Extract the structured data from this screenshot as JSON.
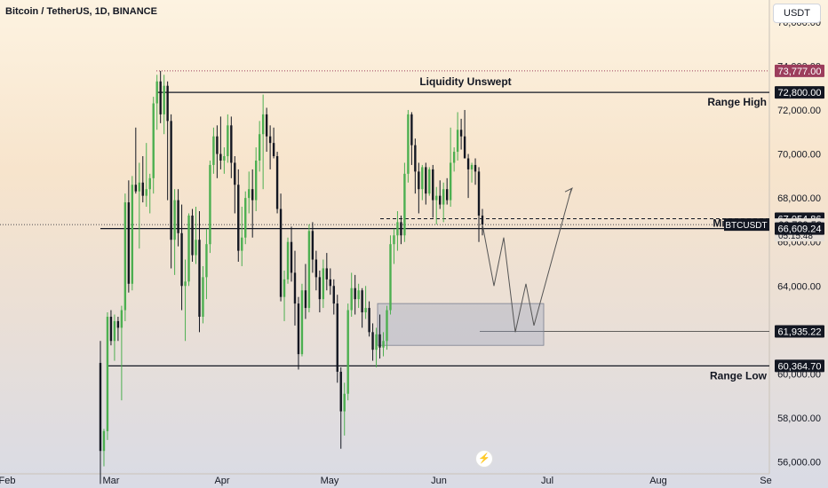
{
  "header": {
    "title": "Bitcoin / TetherUS, 1D, BINANCE",
    "currency": "USDT"
  },
  "logo_icon": "tradingview-logo-icon",
  "chart_data": {
    "type": "candlestick",
    "symbol": "BTCUSDT",
    "y_axis": {
      "range": [
        55500,
        77000
      ],
      "ticks": [
        56000,
        58000,
        60000,
        62000,
        64000,
        66000,
        68000,
        70000,
        72000,
        74000,
        76000
      ],
      "tick_labels": [
        "56,000.00",
        "58,000.00",
        "60,000.00",
        "62,000.00",
        "64,000.00",
        "66,000.00",
        "68,000.00",
        "70,000.00",
        "72,000.00",
        "74,000.00",
        "76,000.00"
      ]
    },
    "x_axis": {
      "labels": [
        "Feb",
        "Mar",
        "Apr",
        "May",
        "Jun",
        "Jul",
        "Aug",
        "Se"
      ]
    },
    "colors": {
      "up": "#4caf50",
      "down": "#131722",
      "resistance": "#131722",
      "price_label": "#131722",
      "ath_label": "#9c3d5c"
    },
    "price_labels": [
      {
        "text": "73,777.00",
        "value": 73777,
        "style": "ath"
      },
      {
        "text": "72,800.00",
        "value": 72800,
        "style": "dark"
      },
      {
        "text": "67,054.86",
        "value": 67054.86,
        "style": "dark"
      },
      {
        "text": "66,789.52",
        "value": 66789.52,
        "style": "dark",
        "prefix": "BTCUSDT",
        "countdown": "05:15:48"
      },
      {
        "text": "66,609.24",
        "value": 66609.24,
        "style": "dark"
      },
      {
        "text": "61,935.22",
        "value": 61935.22,
        "style": "dark"
      },
      {
        "text": "60,364.70",
        "value": 60364.7,
        "style": "dark"
      }
    ],
    "annotations": [
      {
        "text": "Liquidity Unswept",
        "value": 72800
      },
      {
        "text": "Range High",
        "value": 72800
      },
      {
        "text": "Mid Range",
        "value": 66609.24
      },
      {
        "text": "Range Low",
        "value": 60364.7
      }
    ],
    "levels": {
      "range_high": 72800,
      "mid_range": 66609.24,
      "range_low": 60364.7,
      "ath": 73777,
      "last_price": 66789.52,
      "dashed_level": 67054.86,
      "target": 61935.22
    },
    "demand_zone": {
      "top": 63200,
      "bottom": 61300
    },
    "projection": [
      66800,
      64000,
      66200,
      61900,
      64100,
      62200,
      68400
    ],
    "candles": [
      [
        60500,
        61500,
        55000,
        56500
      ],
      [
        56500,
        57500,
        55800,
        57400
      ],
      [
        57400,
        62800,
        57000,
        62600
      ],
      [
        62600,
        62900,
        61300,
        61500
      ],
      [
        61500,
        62700,
        60600,
        62400
      ],
      [
        62400,
        62600,
        61500,
        62100
      ],
      [
        62100,
        63100,
        58800,
        62900
      ],
      [
        62900,
        68200,
        62400,
        67800
      ],
      [
        67800,
        68800,
        63700,
        64100
      ],
      [
        64100,
        69000,
        63800,
        68600
      ],
      [
        68600,
        71200,
        68200,
        68300
      ],
      [
        68300,
        69600,
        65700,
        68700
      ],
      [
        68700,
        69900,
        67800,
        68100
      ],
      [
        68100,
        70500,
        67600,
        68400
      ],
      [
        68400,
        69100,
        67300,
        68900
      ],
      [
        68900,
        72600,
        68200,
        72300
      ],
      [
        72300,
        73600,
        71100,
        73300
      ],
      [
        73300,
        73777,
        71400,
        71800
      ],
      [
        71800,
        73600,
        70900,
        73100
      ],
      [
        73100,
        73300,
        67900,
        71500
      ],
      [
        71500,
        71800,
        64800,
        66100
      ],
      [
        66100,
        68400,
        64500,
        67900
      ],
      [
        67900,
        68400,
        65800,
        66400
      ],
      [
        66400,
        67700,
        62900,
        64000
      ],
      [
        64000,
        65200,
        61500,
        64200
      ],
      [
        64200,
        67300,
        64000,
        67200
      ],
      [
        67200,
        67500,
        65100,
        65400
      ],
      [
        65400,
        67600,
        65000,
        66100
      ],
      [
        66100,
        67400,
        61900,
        62600
      ],
      [
        62600,
        64900,
        62300,
        64400
      ],
      [
        64400,
        66600,
        63400,
        65900
      ],
      [
        65900,
        69700,
        65500,
        69500
      ],
      [
        69500,
        71200,
        69100,
        70800
      ],
      [
        70800,
        71300,
        68900,
        70000
      ],
      [
        70000,
        71700,
        69300,
        69700
      ],
      [
        69700,
        70300,
        69100,
        69900
      ],
      [
        69900,
        71800,
        69600,
        71300
      ],
      [
        71300,
        71700,
        68900,
        69600
      ],
      [
        69600,
        69900,
        67300,
        68600
      ],
      [
        68600,
        69300,
        65100,
        65600
      ],
      [
        65600,
        67600,
        64900,
        66200
      ],
      [
        66200,
        68300,
        65900,
        68000
      ],
      [
        68000,
        69200,
        67300,
        68400
      ],
      [
        68400,
        69300,
        66200,
        67900
      ],
      [
        67900,
        70300,
        67400,
        69700
      ],
      [
        69700,
        71500,
        69200,
        70900
      ],
      [
        70900,
        72700,
        68400,
        71800
      ],
      [
        71800,
        72100,
        70100,
        70800
      ],
      [
        70800,
        71300,
        69300,
        70500
      ],
      [
        70500,
        71200,
        69800,
        69900
      ],
      [
        69900,
        70100,
        67300,
        67500
      ],
      [
        67500,
        68200,
        63300,
        63500
      ],
      [
        63500,
        64700,
        62400,
        64300
      ],
      [
        64300,
        66200,
        64100,
        66000
      ],
      [
        66000,
        66700,
        64200,
        64600
      ],
      [
        64600,
        65600,
        62200,
        63200
      ],
      [
        63200,
        63500,
        60200,
        60900
      ],
      [
        60900,
        64100,
        60800,
        63800
      ],
      [
        63800,
        65000,
        62500,
        63000
      ],
      [
        63000,
        66800,
        62800,
        66500
      ],
      [
        66500,
        66900,
        64600,
        65200
      ],
      [
        65200,
        65600,
        63800,
        64400
      ],
      [
        64400,
        64700,
        62800,
        63400
      ],
      [
        63400,
        65200,
        63000,
        64800
      ],
      [
        64800,
        65500,
        63800,
        64300
      ],
      [
        64300,
        64800,
        63600,
        64000
      ],
      [
        64000,
        64300,
        62700,
        63200
      ],
      [
        63200,
        63600,
        59600,
        60100
      ],
      [
        60100,
        60300,
        56600,
        58300
      ],
      [
        58300,
        59600,
        57200,
        59100
      ],
      [
        59100,
        63200,
        58800,
        62900
      ],
      [
        62900,
        64600,
        62600,
        63900
      ],
      [
        63900,
        64500,
        62700,
        63400
      ],
      [
        63400,
        64100,
        63000,
        63800
      ],
      [
        63800,
        63900,
        62100,
        62800
      ],
      [
        62800,
        64000,
        62500,
        63000
      ],
      [
        63000,
        63300,
        61700,
        61900
      ],
      [
        61900,
        62300,
        60600,
        61100
      ],
      [
        61100,
        62100,
        60300,
        61800
      ],
      [
        61800,
        62700,
        60700,
        61200
      ],
      [
        61200,
        61900,
        60800,
        61500
      ],
      [
        61500,
        63100,
        61100,
        62900
      ],
      [
        62900,
        66300,
        62700,
        65900
      ],
      [
        65900,
        66600,
        65000,
        66300
      ],
      [
        66300,
        67400,
        65600,
        66900
      ],
      [
        66900,
        67200,
        65900,
        66300
      ],
      [
        66300,
        69600,
        66000,
        69100
      ],
      [
        69100,
        72000,
        68700,
        71800
      ],
      [
        71800,
        71900,
        69500,
        70400
      ],
      [
        70400,
        70700,
        68200,
        69200
      ],
      [
        69200,
        69600,
        67300,
        68400
      ],
      [
        68400,
        69500,
        67900,
        69400
      ],
      [
        69400,
        69600,
        67700,
        68200
      ],
      [
        68200,
        69400,
        68100,
        69300
      ],
      [
        69300,
        69500,
        67100,
        67900
      ],
      [
        67900,
        68500,
        66800,
        68100
      ],
      [
        68100,
        68800,
        67500,
        67700
      ],
      [
        67700,
        68700,
        66900,
        68400
      ],
      [
        68400,
        68900,
        67700,
        67900
      ],
      [
        67900,
        71200,
        67600,
        69600
      ],
      [
        69600,
        70300,
        69200,
        70100
      ],
      [
        70100,
        71900,
        69700,
        71100
      ],
      [
        71100,
        71600,
        70200,
        70800
      ],
      [
        70800,
        72000,
        69900,
        69800
      ],
      [
        69800,
        70000,
        68000,
        69300
      ],
      [
        69300,
        69600,
        68700,
        69500
      ],
      [
        69500,
        69800,
        68600,
        69200
      ],
      [
        69200,
        69400,
        66000,
        67200
      ],
      [
        67200,
        67500,
        66300,
        66789.52
      ]
    ]
  }
}
